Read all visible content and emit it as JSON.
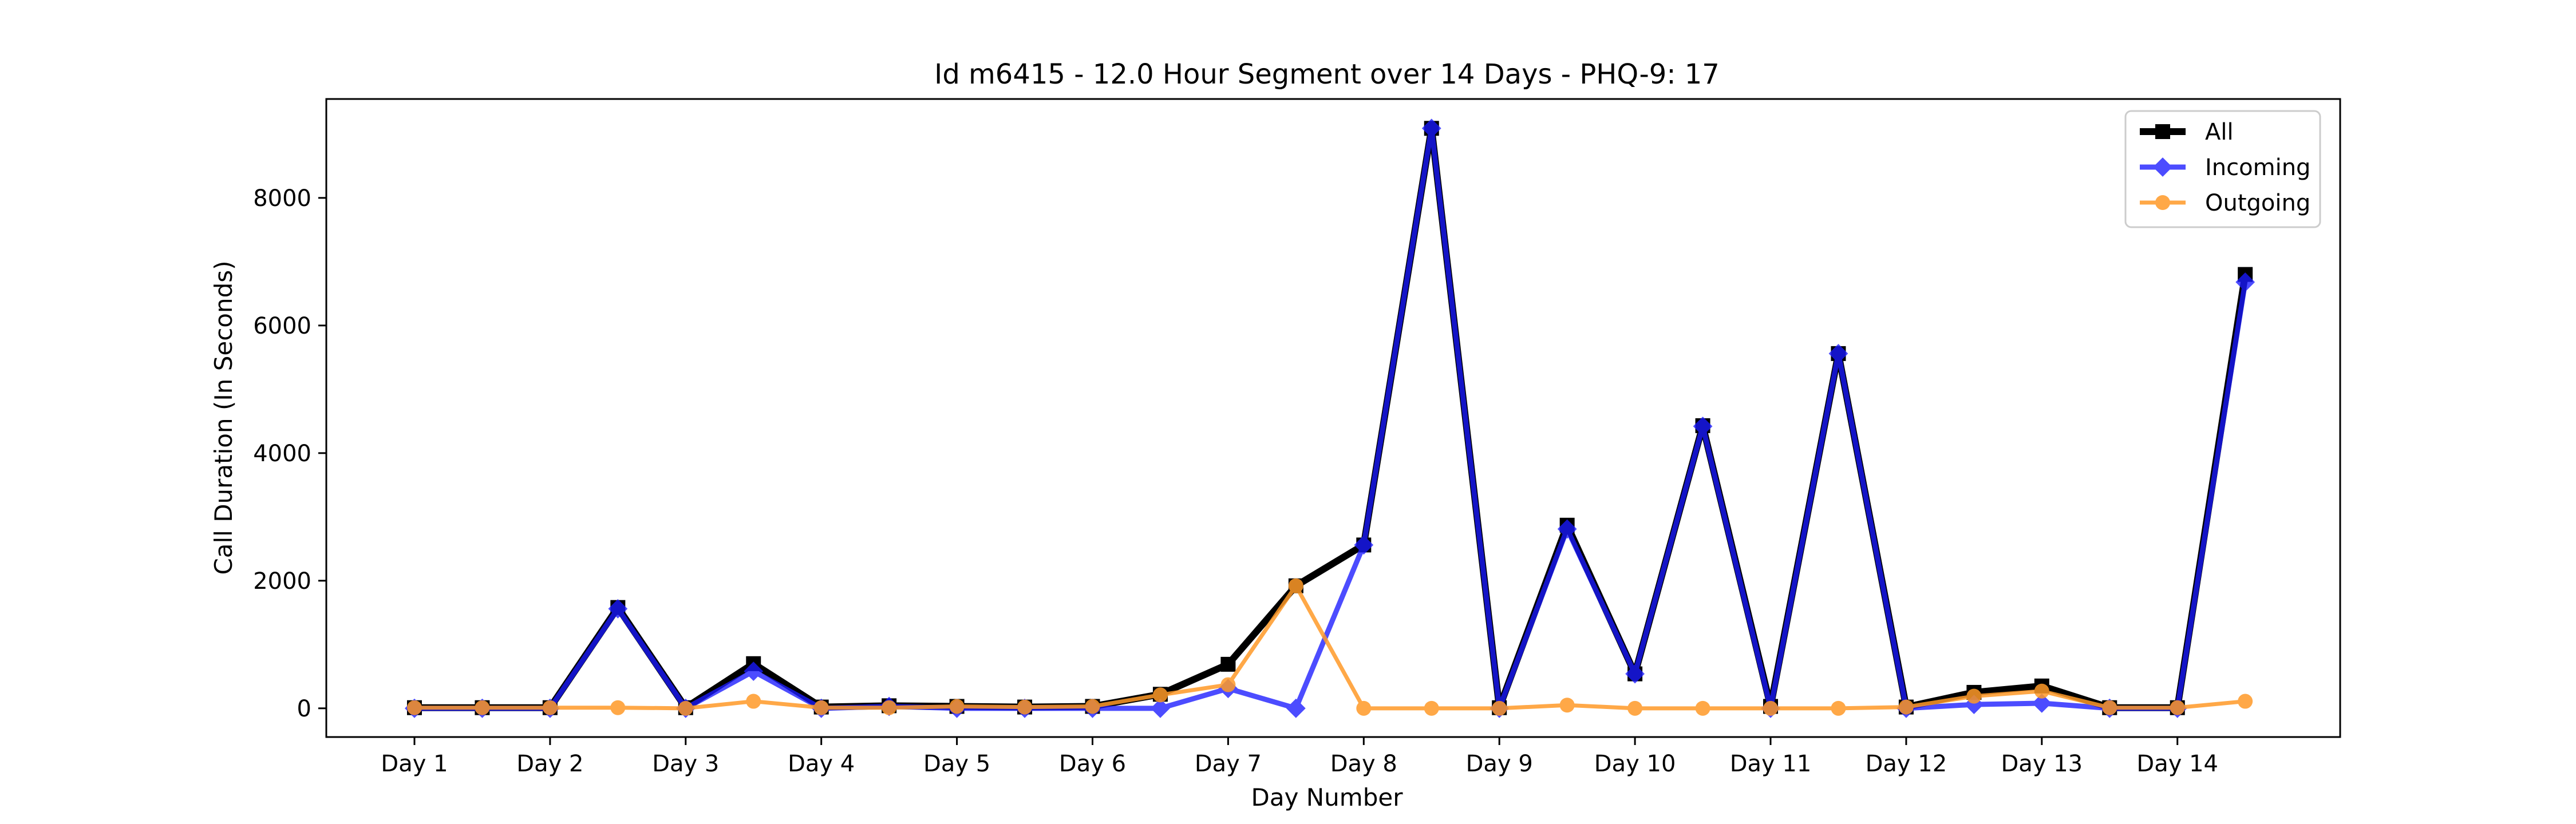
{
  "chart_data": {
    "type": "line",
    "title": "Id m6415 - 12.0 Hour Segment over 14 Days - PHQ-9: 17",
    "xlabel": "Day Number",
    "ylabel": "Call Duration (In Seconds)",
    "xlim": [
      0.35,
      15.2
    ],
    "ylim": [
      -450,
      9550
    ],
    "x": [
      1,
      1.5,
      2,
      2.5,
      3,
      3.5,
      4,
      4.5,
      5,
      5.5,
      6,
      6.5,
      7,
      7.5,
      8,
      8.5,
      9,
      9.5,
      10,
      10.5,
      11,
      11.5,
      12,
      12.5,
      13,
      13.5,
      14,
      14.5
    ],
    "x_ticks": [
      1,
      2,
      3,
      4,
      5,
      6,
      7,
      8,
      9,
      10,
      11,
      12,
      13,
      14
    ],
    "x_tick_labels": [
      "Day 1",
      "Day 2",
      "Day 3",
      "Day 4",
      "Day 5",
      "Day 6",
      "Day 7",
      "Day 8",
      "Day 9",
      "Day 10",
      "Day 11",
      "Day 12",
      "Day 13",
      "Day 14"
    ],
    "y_ticks": [
      0,
      2000,
      4000,
      6000,
      8000
    ],
    "y_tick_labels": [
      "0",
      "2000",
      "4000",
      "6000",
      "8000"
    ],
    "grid": false,
    "legend_position": "top-right",
    "series": [
      {
        "name": "All",
        "color": "#000000",
        "marker": "square",
        "values": [
          10,
          10,
          10,
          1580,
          10,
          700,
          20,
          40,
          30,
          20,
          30,
          220,
          690,
          1920,
          2560,
          9090,
          10,
          2870,
          540,
          4430,
          30,
          5560,
          20,
          250,
          350,
          10,
          10,
          6800
        ]
      },
      {
        "name": "Incoming",
        "color": "#1a1aff",
        "marker": "diamond",
        "values": [
          0,
          0,
          0,
          1560,
          0,
          580,
          0,
          30,
          0,
          0,
          0,
          0,
          310,
          0,
          2560,
          9090,
          0,
          2810,
          540,
          4420,
          0,
          5560,
          0,
          60,
          80,
          0,
          0,
          6680
        ]
      },
      {
        "name": "Outgoing",
        "color": "#ff9a28",
        "marker": "circle",
        "values": [
          10,
          10,
          10,
          10,
          0,
          110,
          10,
          10,
          30,
          20,
          30,
          210,
          370,
          1920,
          0,
          0,
          0,
          50,
          0,
          0,
          0,
          0,
          20,
          190,
          270,
          10,
          10,
          110
        ]
      }
    ]
  }
}
